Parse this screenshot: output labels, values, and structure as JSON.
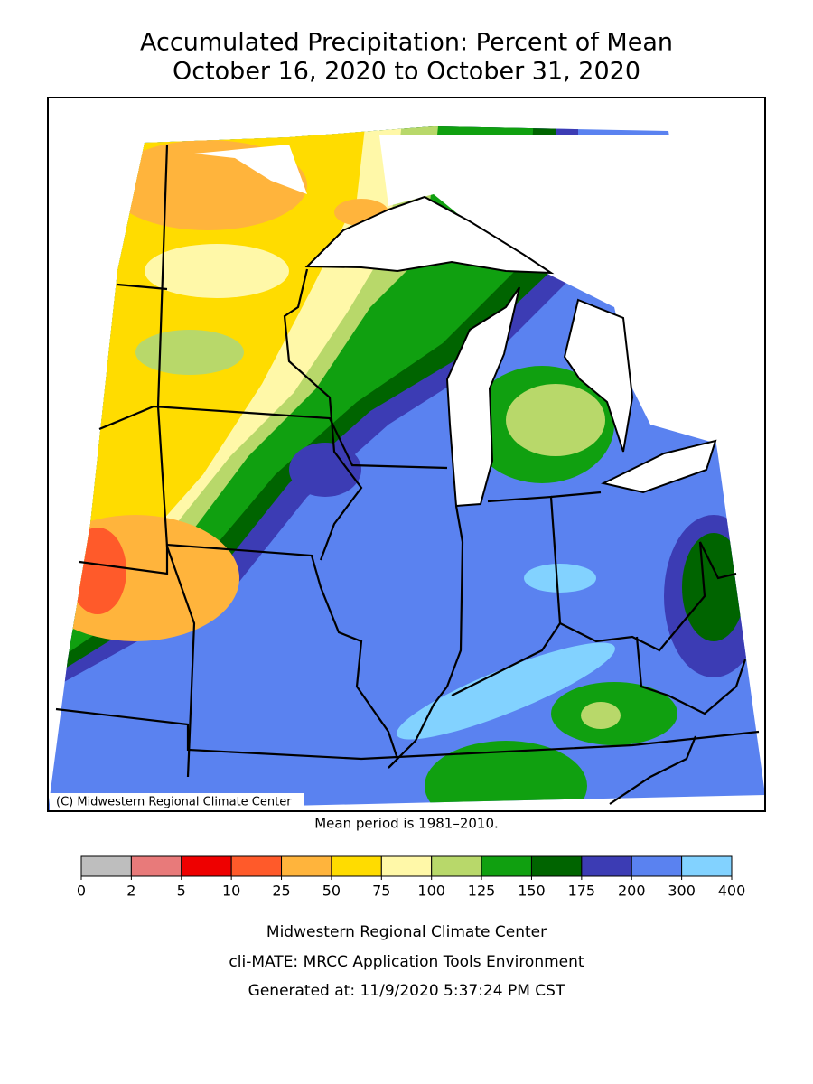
{
  "title": [
    "Accumulated Precipitation: Percent of Mean",
    "October 16, 2020 to October 31, 2020"
  ],
  "map": {
    "credit": "(C) Midwestern Regional Climate Center"
  },
  "note": "Mean period is 1981–2010.",
  "legend": {
    "ticks": [
      0,
      2,
      5,
      10,
      25,
      50,
      75,
      100,
      125,
      150,
      175,
      200,
      300,
      400
    ],
    "colors": [
      "#bebebe",
      "#e87a7a",
      "#ee0000",
      "#ff5a2a",
      "#ffb43c",
      "#ffdc00",
      "#fff8a8",
      "#b8d86a",
      "#10a010",
      "#006400",
      "#3c3cb4",
      "#5a82f0",
      "#82d2ff"
    ]
  },
  "footer": [
    "Midwestern Regional Climate Center",
    "cli-MATE: MRCC Application Tools Environment",
    "Generated at: 11/9/2020 5:37:24 PM CST"
  ]
}
